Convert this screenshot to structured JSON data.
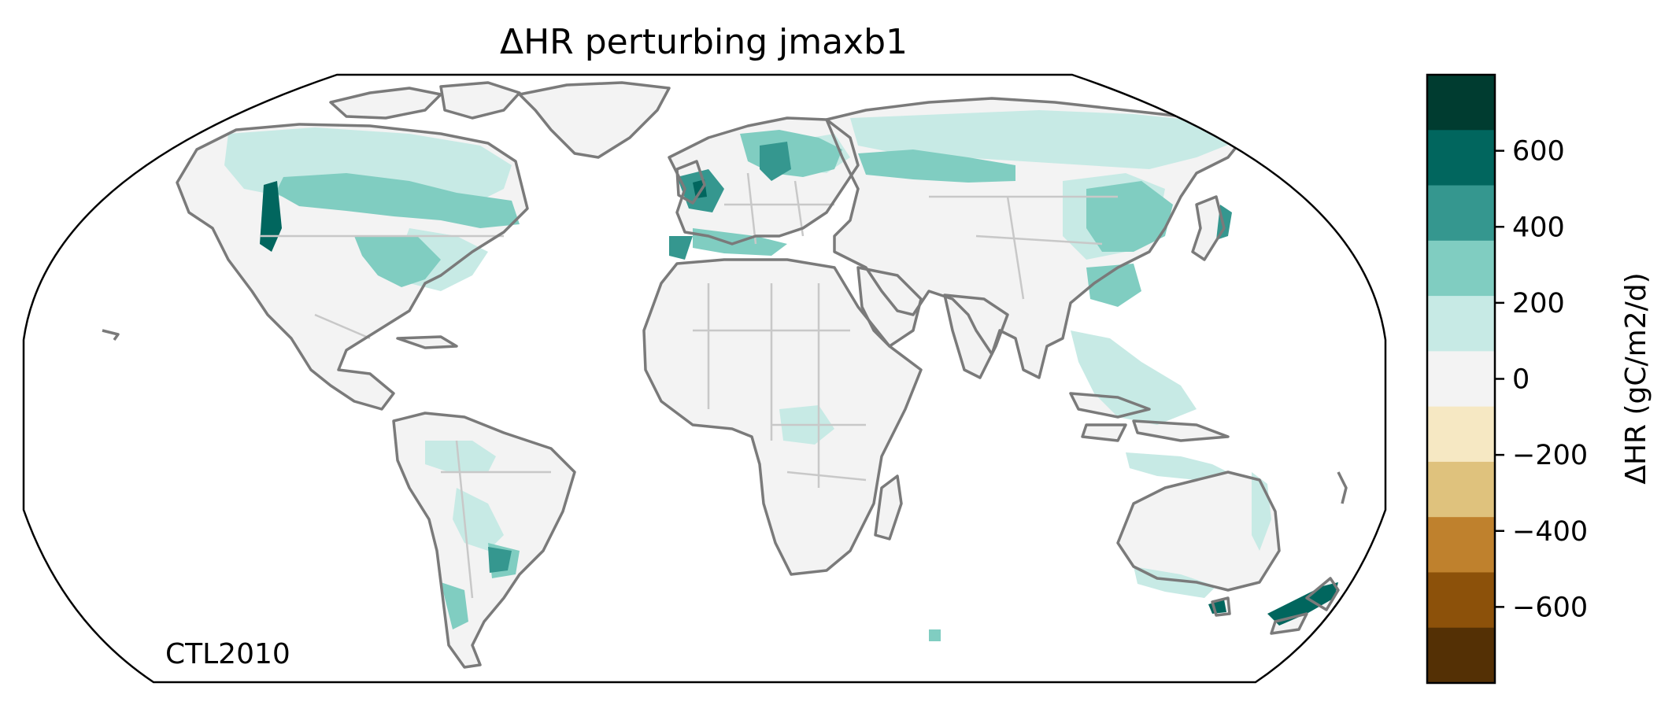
{
  "title": "ΔHR perturbing jmaxb1",
  "annotation": "CTL2010",
  "colorbar": {
    "label": "ΔHR (gC/m2/d)",
    "ticks": [
      {
        "value": 600,
        "label": "600"
      },
      {
        "value": 400,
        "label": "400"
      },
      {
        "value": 200,
        "label": "200"
      },
      {
        "value": 0,
        "label": "0"
      },
      {
        "value": -200,
        "label": "−200"
      },
      {
        "value": -400,
        "label": "−400"
      },
      {
        "value": -600,
        "label": "−600"
      }
    ],
    "range": [
      -800,
      800
    ],
    "bins": [
      {
        "from": 600,
        "to": 800,
        "color": "#003c30"
      },
      {
        "from": 450,
        "to": 600,
        "color": "#01665e"
      },
      {
        "from": 300,
        "to": 450,
        "color": "#35978f"
      },
      {
        "from": 150,
        "to": 300,
        "color": "#80cdc1"
      },
      {
        "from": 50,
        "to": 150,
        "color": "#c7eae5"
      },
      {
        "from": -50,
        "to": 50,
        "color": "#f3f3f3"
      },
      {
        "from": -150,
        "to": -50,
        "color": "#f6e8c3"
      },
      {
        "from": -300,
        "to": -150,
        "color": "#dfc27d"
      },
      {
        "from": -450,
        "to": -300,
        "color": "#bf812d"
      },
      {
        "from": -600,
        "to": -450,
        "color": "#8c510a"
      },
      {
        "from": -800,
        "to": -600,
        "color": "#543005"
      }
    ]
  },
  "colors": {
    "neutral": "#f3f3f3",
    "light_teal": "#c7eae5",
    "teal": "#80cdc1",
    "mid_teal": "#35978f",
    "dark_teal": "#01665e",
    "coastline": "#7a7a7a",
    "borders": "#c8c8c8"
  }
}
